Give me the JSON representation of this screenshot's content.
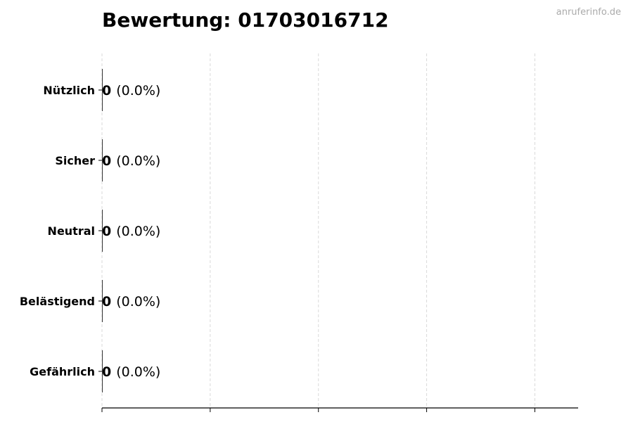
{
  "watermark": "anruferinfo.de",
  "chart_data": {
    "type": "bar",
    "orientation": "horizontal",
    "title": "Bewertung: 01703016712",
    "categories": [
      "Nützlich",
      "Sicher",
      "Neutral",
      "Belästigend",
      "Gefährlich"
    ],
    "values": [
      0,
      0,
      0,
      0,
      0
    ],
    "percent_labels": [
      "(0.0%)",
      "(0.0%)",
      "(0.0%)",
      "(0.0%)",
      "(0.0%)"
    ],
    "xlim": [
      0,
      4.4
    ],
    "xticks": [
      0,
      1,
      2,
      3,
      4
    ],
    "xtick_labels_shown": false,
    "grid": "vertical dashed",
    "bar_color": "#333333",
    "grid_color": "#d9d9d9"
  }
}
